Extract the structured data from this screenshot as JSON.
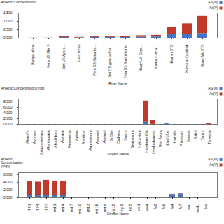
{
  "chart_data": [
    {
      "type": "bar",
      "stacked": true,
      "xlabel": "River Name",
      "ylabel": "Arsenic Concentration",
      "categories": [
        "Pompo alone",
        "Fera US Mile 9",
        "Jimi US Appro...",
        "Fera at Hia",
        "Fera DS Sumu 6a...",
        "Jimi DS gate before...",
        "Fera DS Sumu (mine)",
        "Nkam US Serio...",
        "Biama < 9ft at...",
        "Nkam n STD",
        "Pompo w Kwabrab",
        "Nkam Mk STD"
      ],
      "series": [
        {
          "name": "AS(III)",
          "color": "#4472c4",
          "values": [
            0.004,
            0.004,
            0.04,
            0.022,
            0.045,
            0.048,
            0.042,
            0.055,
            0.075,
            0.21,
            0.24,
            0.28
          ]
        },
        {
          "name": "As(V)",
          "color": "#c0392b",
          "values": [
            0.004,
            0.004,
            0.045,
            0.03,
            0.065,
            0.075,
            0.075,
            0.095,
            0.095,
            0.44,
            0.62,
            1.02
          ]
        }
      ],
      "ylim": [
        0,
        1.5
      ],
      "yticks": [
        {
          "value": 0,
          "label": "0.000"
        },
        {
          "value": 0.5,
          "label": "0.500"
        },
        {
          "value": 1,
          "label": "1.000"
        },
        {
          "value": 1.5,
          "label": "1.500"
        }
      ],
      "legend": "upper right",
      "grid": false
    },
    {
      "type": "bar",
      "stacked": true,
      "xlabel": "Stream Name",
      "ylabel": "Arsenic Concentration (mg/l)",
      "categories": [
        "Abakofo",
        "Aboroso",
        "Aduboosewusu",
        "Ahommaasa",
        "Akodeduru",
        "Adwatia",
        "Amosateng",
        "Apitau",
        "Asonkoo",
        "Aquosamura",
        "Awobasi",
        "Anyagui",
        "Bir Biei",
        "Dadiesu",
        "Davco",
        "Gyatoseura",
        "Kokooyiwa",
        "Korobrato Gla",
        "Kyrobodwawso",
        "Mori Asora",
        "Noudfufuo",
        "Hyamdie",
        "Priestoam",
        "Sansun",
        "Subiri",
        "Tapiro",
        "Twereba"
      ],
      "series": [
        {
          "name": "AS(III)",
          "color": "#4472c4",
          "values": [
            0.005,
            0.005,
            0.005,
            0.005,
            0.005,
            0.005,
            0.005,
            0.005,
            0.005,
            0.005,
            0.005,
            0.005,
            0.005,
            0.005,
            0.005,
            0.005,
            0.005,
            0.8,
            0.005,
            0.005,
            0.22,
            0.005,
            0.005,
            0.005,
            0.005,
            0.005,
            0.005
          ]
        },
        {
          "name": "As(V)",
          "color": "#c0392b",
          "values": [
            0.005,
            0.005,
            0.005,
            0.005,
            0.005,
            0.005,
            0.005,
            0.005,
            0.005,
            0.005,
            0.005,
            0.005,
            0.005,
            0.005,
            0.005,
            0.005,
            0.005,
            7.5,
            1.3,
            0.005,
            0.005,
            0.005,
            0.005,
            0.005,
            0.005,
            0.005,
            0.38
          ]
        }
      ],
      "ylim": [
        0,
        9.0
      ],
      "yticks": [
        {
          "value": 0,
          "label": "0.000"
        },
        {
          "value": 2,
          "label": "2.000"
        },
        {
          "value": 4,
          "label": "4.000"
        },
        {
          "value": 6,
          "label": "6.000"
        },
        {
          "value": 8,
          "label": "8.000"
        }
      ],
      "legend": "upper right",
      "grid": false
    },
    {
      "type": "bar",
      "stacked": true,
      "xlabel": "Stream Name",
      "ylabel": "Arsenic\nConcentration\n(mg/l)",
      "categories": [
        "TP1",
        "TP4",
        "TP7",
        "md 1",
        "md 4",
        "md 7",
        "md 10",
        "md 3",
        "md 16",
        "md 9",
        "md 12",
        "my 2",
        "my 5",
        "soo1",
        "soo4",
        "fo2",
        "fo5",
        "fo4",
        "fo7",
        "fo4.",
        "soo1.",
        "loo"
      ],
      "series": [
        {
          "name": "AS(III)",
          "color": "#4472c4",
          "values": [
            0.65,
            0.62,
            0.68,
            0.64,
            0.63,
            0.0,
            0.0,
            0.04,
            0.04,
            0.04,
            0.05,
            0.04,
            0.04,
            0.04,
            0.08,
            0.04,
            0.04,
            0.85,
            1.0,
            0.04,
            0.04,
            0.04
          ]
        },
        {
          "name": "As(V)",
          "color": "#c0392b",
          "values": [
            3.5,
            3.45,
            3.85,
            3.65,
            3.55,
            0.0,
            0.0,
            0.02,
            0.02,
            0.02,
            0.02,
            0.02,
            0.02,
            0.02,
            0.02,
            0.02,
            0.02,
            0.08,
            0.08,
            0.02,
            0.02,
            0.02
          ]
        }
      ],
      "ylim": [
        0,
        6.5
      ],
      "yticks": [
        {
          "value": 0,
          "label": "0.000"
        },
        {
          "value": 2,
          "label": "2.000"
        },
        {
          "value": 4,
          "label": "4.000"
        },
        {
          "value": 6,
          "label": "6.000"
        }
      ],
      "legend": "upper right",
      "grid": false
    }
  ]
}
